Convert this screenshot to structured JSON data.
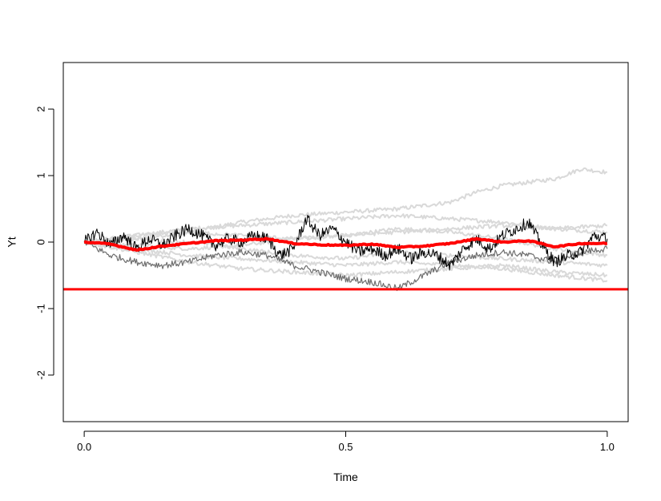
{
  "chart_data": {
    "type": "line",
    "title": "",
    "xlabel": "Time",
    "ylabel": "Yt",
    "xlim": [
      -0.04,
      1.04
    ],
    "ylim": [
      -2.7,
      2.7
    ],
    "xticks": [
      0.0,
      0.5,
      1.0
    ],
    "xtick_labels": [
      "0.0",
      "0.5",
      "1.0"
    ],
    "yticks": [
      -2,
      -1,
      0,
      1,
      2
    ],
    "ytick_labels": [
      "-2",
      "-1",
      "0",
      "1",
      "2"
    ],
    "grid": false,
    "legend": "none",
    "colors": {
      "background_paths": "#d9d9d9",
      "dark_path": "#000000",
      "mid_path": "#6e6e6e",
      "mean_path": "#ff0000",
      "threshold": "#ff0000"
    },
    "threshold_y": -0.71,
    "series": [
      {
        "role": "background",
        "x": [
          0,
          0.1,
          0.2,
          0.3,
          0.4,
          0.5,
          0.6,
          0.7,
          0.75,
          0.8,
          0.9,
          0.95,
          1.0
        ],
        "y": [
          0,
          0.05,
          0.15,
          0.3,
          0.4,
          0.45,
          0.5,
          0.6,
          0.75,
          0.85,
          0.95,
          1.1,
          1.05
        ]
      },
      {
        "role": "background",
        "x": [
          0,
          0.1,
          0.2,
          0.3,
          0.4,
          0.5,
          0.6,
          0.7,
          0.8,
          0.9,
          1.0
        ],
        "y": [
          0,
          0.1,
          0.2,
          0.25,
          0.3,
          0.35,
          0.4,
          0.35,
          0.3,
          0.2,
          0.15
        ]
      },
      {
        "role": "background",
        "x": [
          0,
          0.1,
          0.2,
          0.3,
          0.4,
          0.5,
          0.6,
          0.7,
          0.8,
          0.9,
          1.0
        ],
        "y": [
          0,
          -0.05,
          -0.1,
          -0.05,
          0.05,
          0.1,
          0.2,
          0.15,
          0.05,
          -0.1,
          -0.2
        ]
      },
      {
        "role": "background",
        "x": [
          0,
          0.1,
          0.2,
          0.3,
          0.4,
          0.5,
          0.6,
          0.7,
          0.8,
          0.9,
          1.0
        ],
        "y": [
          0,
          -0.1,
          -0.2,
          -0.25,
          -0.3,
          -0.35,
          -0.3,
          -0.35,
          -0.4,
          -0.5,
          -0.58
        ]
      },
      {
        "role": "background",
        "x": [
          0,
          0.1,
          0.2,
          0.3,
          0.4,
          0.5,
          0.6,
          0.7,
          0.8,
          0.9,
          1.0
        ],
        "y": [
          0,
          0.05,
          0.0,
          -0.1,
          -0.2,
          -0.25,
          -0.15,
          -0.2,
          -0.25,
          -0.3,
          -0.35
        ]
      },
      {
        "role": "background",
        "x": [
          0,
          0.1,
          0.2,
          0.3,
          0.4,
          0.5,
          0.6,
          0.7,
          0.8,
          0.9,
          1.0
        ],
        "y": [
          0,
          -0.15,
          -0.3,
          -0.4,
          -0.45,
          -0.5,
          -0.45,
          -0.4,
          -0.35,
          -0.45,
          -0.5
        ]
      },
      {
        "role": "background",
        "x": [
          0,
          0.1,
          0.2,
          0.3,
          0.4,
          0.5,
          0.6,
          0.7,
          0.8,
          0.9,
          1.0
        ],
        "y": [
          0,
          0.1,
          0.15,
          0.1,
          0.05,
          0.1,
          0.15,
          0.2,
          0.25,
          0.2,
          0.25
        ]
      },
      {
        "role": "mid",
        "x": [
          0,
          0.05,
          0.1,
          0.15,
          0.2,
          0.25,
          0.3,
          0.35,
          0.4,
          0.45,
          0.5,
          0.55,
          0.6,
          0.65,
          0.7,
          0.75,
          0.8,
          0.85,
          0.9,
          0.95,
          1.0
        ],
        "y": [
          0,
          -0.2,
          -0.3,
          -0.35,
          -0.3,
          -0.2,
          -0.15,
          -0.2,
          -0.35,
          -0.45,
          -0.55,
          -0.6,
          -0.7,
          -0.5,
          -0.3,
          -0.2,
          -0.15,
          -0.2,
          -0.3,
          -0.15,
          -0.1
        ]
      },
      {
        "role": "dark",
        "x": [
          0,
          0.025,
          0.05,
          0.075,
          0.1,
          0.125,
          0.15,
          0.175,
          0.2,
          0.225,
          0.25,
          0.275,
          0.3,
          0.325,
          0.35,
          0.375,
          0.4,
          0.425,
          0.45,
          0.475,
          0.5,
          0.525,
          0.55,
          0.575,
          0.6,
          0.625,
          0.65,
          0.675,
          0.7,
          0.725,
          0.75,
          0.775,
          0.8,
          0.825,
          0.85,
          0.875,
          0.9,
          0.925,
          0.95,
          0.975,
          1.0
        ],
        "y": [
          0,
          0.15,
          -0.05,
          0.1,
          -0.1,
          0.05,
          -0.05,
          0.1,
          0.2,
          0.1,
          -0.05,
          0.05,
          0.0,
          0.1,
          0.05,
          -0.2,
          -0.1,
          0.35,
          0.1,
          0.2,
          0.0,
          -0.15,
          -0.1,
          -0.2,
          -0.1,
          -0.25,
          -0.15,
          -0.2,
          -0.35,
          -0.1,
          0.05,
          -0.1,
          0.1,
          0.2,
          0.3,
          -0.05,
          -0.3,
          -0.2,
          -0.15,
          0.1,
          0.05
        ]
      },
      {
        "role": "mean",
        "x": [
          0,
          0.05,
          0.1,
          0.15,
          0.2,
          0.25,
          0.3,
          0.35,
          0.4,
          0.45,
          0.5,
          0.55,
          0.6,
          0.65,
          0.7,
          0.75,
          0.8,
          0.85,
          0.9,
          0.95,
          1.0
        ],
        "y": [
          0,
          -0.03,
          -0.12,
          -0.06,
          -0.02,
          0.02,
          0.03,
          0.05,
          -0.02,
          -0.04,
          -0.05,
          -0.03,
          -0.08,
          -0.06,
          -0.02,
          0.05,
          0.0,
          0.02,
          -0.07,
          -0.02,
          -0.02
        ]
      }
    ]
  }
}
